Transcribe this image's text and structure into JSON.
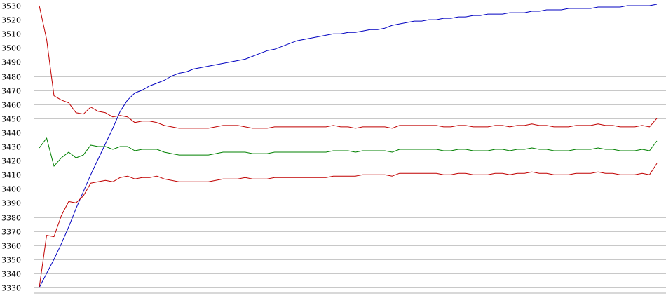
{
  "chart_data": {
    "type": "line",
    "title": "",
    "xlabel": "",
    "ylabel": "",
    "ylim": [
      3330,
      3530
    ],
    "yticks": [
      3330,
      3340,
      3350,
      3360,
      3370,
      3380,
      3390,
      3400,
      3410,
      3420,
      3430,
      3440,
      3450,
      3460,
      3470,
      3480,
      3490,
      3500,
      3510,
      3520,
      3530
    ],
    "grid": true,
    "legend": "none",
    "x": [
      1,
      2,
      3,
      4,
      5,
      6,
      7,
      8,
      9,
      10,
      11,
      12,
      13,
      14,
      15,
      16,
      17,
      18,
      19,
      20,
      21,
      22,
      23,
      24,
      25,
      26,
      27,
      28,
      29,
      30,
      31,
      32,
      33,
      34,
      35,
      36,
      37,
      38,
      39,
      40,
      41,
      42,
      43,
      44,
      45,
      46,
      47,
      48,
      49,
      50,
      51,
      52,
      53,
      54,
      55,
      56,
      57,
      58,
      59,
      60,
      61,
      62,
      63,
      64,
      65,
      66,
      67,
      68,
      69,
      70,
      71,
      72,
      73,
      74,
      75,
      76,
      77,
      78,
      79,
      80,
      81,
      82,
      83,
      84,
      85
    ],
    "series": [
      {
        "color": "#0000c0",
        "values": [
          3330,
          3340,
          3350,
          3361,
          3373,
          3386,
          3398,
          3410,
          3421,
          3432,
          3443,
          3455,
          3463,
          3468,
          3470,
          3473,
          3475,
          3477,
          3480,
          3482,
          3483,
          3485,
          3486,
          3487,
          3488,
          3489,
          3490,
          3491,
          3492,
          3494,
          3496,
          3498,
          3499,
          3501,
          3503,
          3505,
          3506,
          3507,
          3508,
          3509,
          3510,
          3510,
          3511,
          3511,
          3512,
          3513,
          3513,
          3514,
          3516,
          3517,
          3518,
          3519,
          3519,
          3520,
          3520,
          3521,
          3521,
          3522,
          3522,
          3523,
          3523,
          3524,
          3524,
          3524,
          3525,
          3525,
          3525,
          3526,
          3526,
          3527,
          3527,
          3527,
          3528,
          3528,
          3528,
          3528,
          3529,
          3529,
          3529,
          3529,
          3530,
          3530,
          3530,
          3530,
          3531
        ]
      },
      {
        "color": "#c00000",
        "values": [
          3530,
          3506,
          3466,
          3463,
          3461,
          3454,
          3453,
          3458,
          3455,
          3454,
          3451,
          3452,
          3451,
          3447,
          3448,
          3448,
          3447,
          3445,
          3444,
          3443,
          3443,
          3443,
          3443,
          3443,
          3444,
          3445,
          3445,
          3445,
          3444,
          3443,
          3443,
          3443,
          3444,
          3444,
          3444,
          3444,
          3444,
          3444,
          3444,
          3444,
          3445,
          3444,
          3444,
          3443,
          3444,
          3444,
          3444,
          3444,
          3443,
          3445,
          3445,
          3445,
          3445,
          3445,
          3445,
          3444,
          3444,
          3445,
          3445,
          3444,
          3444,
          3444,
          3445,
          3445,
          3444,
          3445,
          3445,
          3446,
          3445,
          3445,
          3444,
          3444,
          3444,
          3445,
          3445,
          3445,
          3446,
          3445,
          3445,
          3444,
          3444,
          3444,
          3445,
          3444,
          3450
        ]
      },
      {
        "color": "#008000",
        "values": [
          3429,
          3436,
          3416,
          3422,
          3426,
          3422,
          3424,
          3431,
          3430,
          3430,
          3428,
          3430,
          3430,
          3427,
          3428,
          3428,
          3428,
          3426,
          3425,
          3424,
          3424,
          3424,
          3424,
          3424,
          3425,
          3426,
          3426,
          3426,
          3426,
          3425,
          3425,
          3425,
          3426,
          3426,
          3426,
          3426,
          3426,
          3426,
          3426,
          3426,
          3427,
          3427,
          3427,
          3426,
          3427,
          3427,
          3427,
          3427,
          3426,
          3428,
          3428,
          3428,
          3428,
          3428,
          3428,
          3427,
          3427,
          3428,
          3428,
          3427,
          3427,
          3427,
          3428,
          3428,
          3427,
          3428,
          3428,
          3429,
          3428,
          3428,
          3427,
          3427,
          3427,
          3428,
          3428,
          3428,
          3429,
          3428,
          3428,
          3427,
          3427,
          3427,
          3428,
          3427,
          3434
        ]
      },
      {
        "color": "#c00000",
        "values": [
          3330,
          3367,
          3366,
          3381,
          3391,
          3390,
          3395,
          3404,
          3405,
          3406,
          3405,
          3408,
          3409,
          3407,
          3408,
          3408,
          3409,
          3407,
          3406,
          3405,
          3405,
          3405,
          3405,
          3405,
          3406,
          3407,
          3407,
          3407,
          3408,
          3407,
          3407,
          3407,
          3408,
          3408,
          3408,
          3408,
          3408,
          3408,
          3408,
          3408,
          3409,
          3409,
          3409,
          3409,
          3410,
          3410,
          3410,
          3410,
          3409,
          3411,
          3411,
          3411,
          3411,
          3411,
          3411,
          3410,
          3410,
          3411,
          3411,
          3410,
          3410,
          3410,
          3411,
          3411,
          3410,
          3411,
          3411,
          3412,
          3411,
          3411,
          3410,
          3410,
          3410,
          3411,
          3411,
          3411,
          3412,
          3411,
          3411,
          3410,
          3410,
          3410,
          3411,
          3410,
          3418
        ]
      }
    ]
  }
}
